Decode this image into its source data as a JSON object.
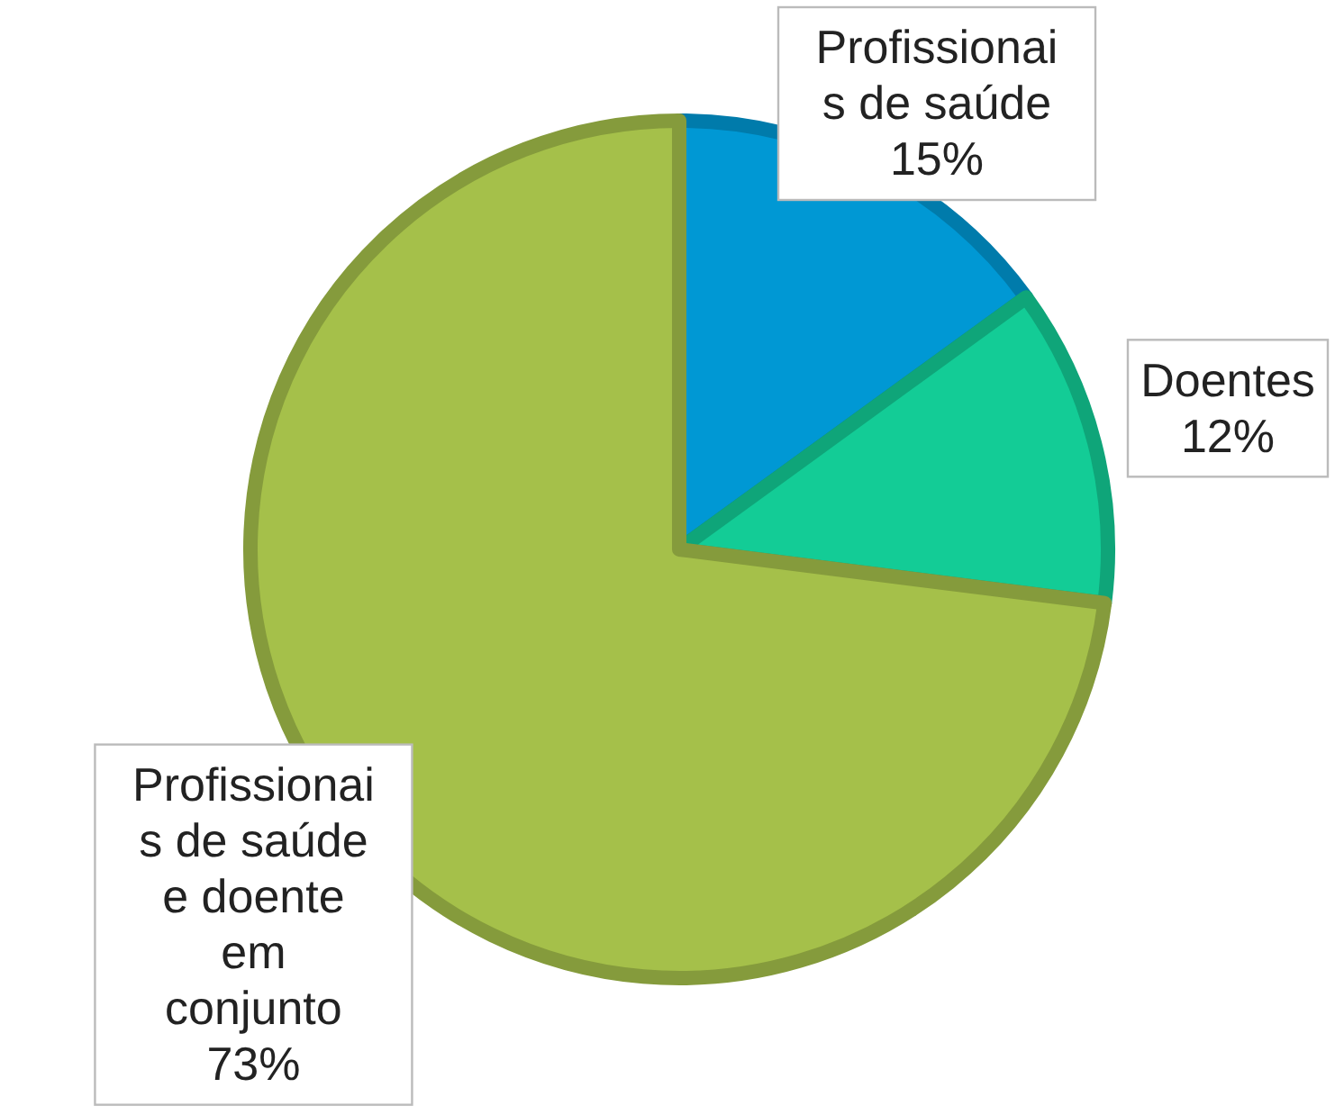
{
  "chart_data": {
    "type": "pie",
    "categories": [
      "Profissionais de saúde",
      "Doentes",
      "Profissionais de saúde e doente em conjunto"
    ],
    "values": [
      15,
      12,
      73
    ],
    "value_labels": [
      "15%",
      "12%",
      "73%"
    ],
    "colors": [
      "#0098d4",
      "#13cc96",
      "#a5c04a"
    ]
  }
}
